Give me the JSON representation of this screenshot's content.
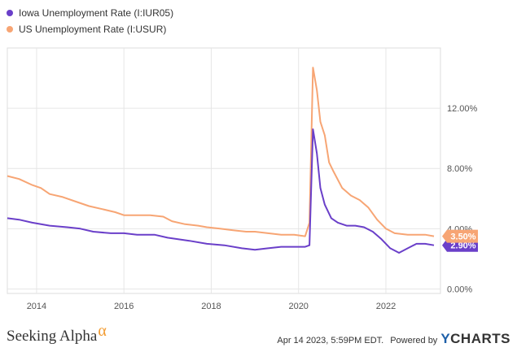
{
  "chart_data": {
    "type": "line",
    "xlim": [
      2013.33,
      2023.25
    ],
    "ylim": [
      -0.3,
      16
    ],
    "y_ticks": [
      {
        "value": 0,
        "label": "0.00%"
      },
      {
        "value": 4,
        "label": "4.00%"
      },
      {
        "value": 8,
        "label": "8.00%"
      },
      {
        "value": 12,
        "label": "12.00%"
      }
    ],
    "x_ticks": [
      {
        "value": 2014,
        "label": "2014"
      },
      {
        "value": 2016,
        "label": "2016"
      },
      {
        "value": 2018,
        "label": "2018"
      },
      {
        "value": 2020,
        "label": "2020"
      },
      {
        "value": 2022,
        "label": "2022"
      }
    ],
    "series": [
      {
        "name": "Iowa Unemployment Rate (I:IUR05)",
        "color": "#6a3fc9",
        "last_label": "2.90%",
        "points": [
          [
            2013.33,
            4.7
          ],
          [
            2013.6,
            4.6
          ],
          [
            2013.9,
            4.4
          ],
          [
            2014.3,
            4.2
          ],
          [
            2014.7,
            4.1
          ],
          [
            2015.0,
            4.0
          ],
          [
            2015.3,
            3.8
          ],
          [
            2015.7,
            3.7
          ],
          [
            2016.0,
            3.7
          ],
          [
            2016.3,
            3.6
          ],
          [
            2016.7,
            3.6
          ],
          [
            2017.0,
            3.4
          ],
          [
            2017.5,
            3.2
          ],
          [
            2017.9,
            3.0
          ],
          [
            2018.3,
            2.9
          ],
          [
            2018.7,
            2.7
          ],
          [
            2019.0,
            2.6
          ],
          [
            2019.3,
            2.7
          ],
          [
            2019.6,
            2.8
          ],
          [
            2019.9,
            2.8
          ],
          [
            2020.15,
            2.8
          ],
          [
            2020.25,
            2.9
          ],
          [
            2020.33,
            10.6
          ],
          [
            2020.42,
            9.0
          ],
          [
            2020.5,
            6.7
          ],
          [
            2020.6,
            5.6
          ],
          [
            2020.75,
            4.7
          ],
          [
            2020.9,
            4.4
          ],
          [
            2021.1,
            4.2
          ],
          [
            2021.3,
            4.2
          ],
          [
            2021.5,
            4.1
          ],
          [
            2021.7,
            3.8
          ],
          [
            2021.9,
            3.3
          ],
          [
            2022.1,
            2.7
          ],
          [
            2022.3,
            2.4
          ],
          [
            2022.5,
            2.7
          ],
          [
            2022.7,
            3.0
          ],
          [
            2022.9,
            3.0
          ],
          [
            2023.1,
            2.9
          ]
        ]
      },
      {
        "name": "US Unemployment Rate (I:USUR)",
        "color": "#f7a574",
        "last_label": "3.50%",
        "points": [
          [
            2013.33,
            7.5
          ],
          [
            2013.6,
            7.3
          ],
          [
            2013.9,
            6.9
          ],
          [
            2014.1,
            6.7
          ],
          [
            2014.3,
            6.3
          ],
          [
            2014.6,
            6.1
          ],
          [
            2014.9,
            5.8
          ],
          [
            2015.2,
            5.5
          ],
          [
            2015.5,
            5.3
          ],
          [
            2015.8,
            5.1
          ],
          [
            2016.0,
            4.9
          ],
          [
            2016.3,
            4.9
          ],
          [
            2016.6,
            4.9
          ],
          [
            2016.9,
            4.8
          ],
          [
            2017.1,
            4.5
          ],
          [
            2017.4,
            4.3
          ],
          [
            2017.7,
            4.2
          ],
          [
            2017.9,
            4.1
          ],
          [
            2018.2,
            4.0
          ],
          [
            2018.5,
            3.9
          ],
          [
            2018.8,
            3.8
          ],
          [
            2019.0,
            3.8
          ],
          [
            2019.3,
            3.7
          ],
          [
            2019.6,
            3.6
          ],
          [
            2019.9,
            3.6
          ],
          [
            2020.15,
            3.5
          ],
          [
            2020.25,
            4.4
          ],
          [
            2020.33,
            14.7
          ],
          [
            2020.42,
            13.2
          ],
          [
            2020.5,
            11.1
          ],
          [
            2020.6,
            10.2
          ],
          [
            2020.7,
            8.4
          ],
          [
            2020.8,
            7.8
          ],
          [
            2021.0,
            6.7
          ],
          [
            2021.2,
            6.2
          ],
          [
            2021.4,
            5.9
          ],
          [
            2021.6,
            5.4
          ],
          [
            2021.8,
            4.6
          ],
          [
            2022.0,
            4.0
          ],
          [
            2022.2,
            3.7
          ],
          [
            2022.5,
            3.6
          ],
          [
            2022.7,
            3.6
          ],
          [
            2022.9,
            3.6
          ],
          [
            2023.1,
            3.5
          ]
        ]
      }
    ]
  },
  "footer": {
    "brand": "Seeking Alpha",
    "brand_symbol": "α",
    "timestamp": "Apr 14 2023, 5:59PM EDT.",
    "powered_by": "Powered by",
    "provider_y": "Y",
    "provider_rest": "CHARTS"
  }
}
